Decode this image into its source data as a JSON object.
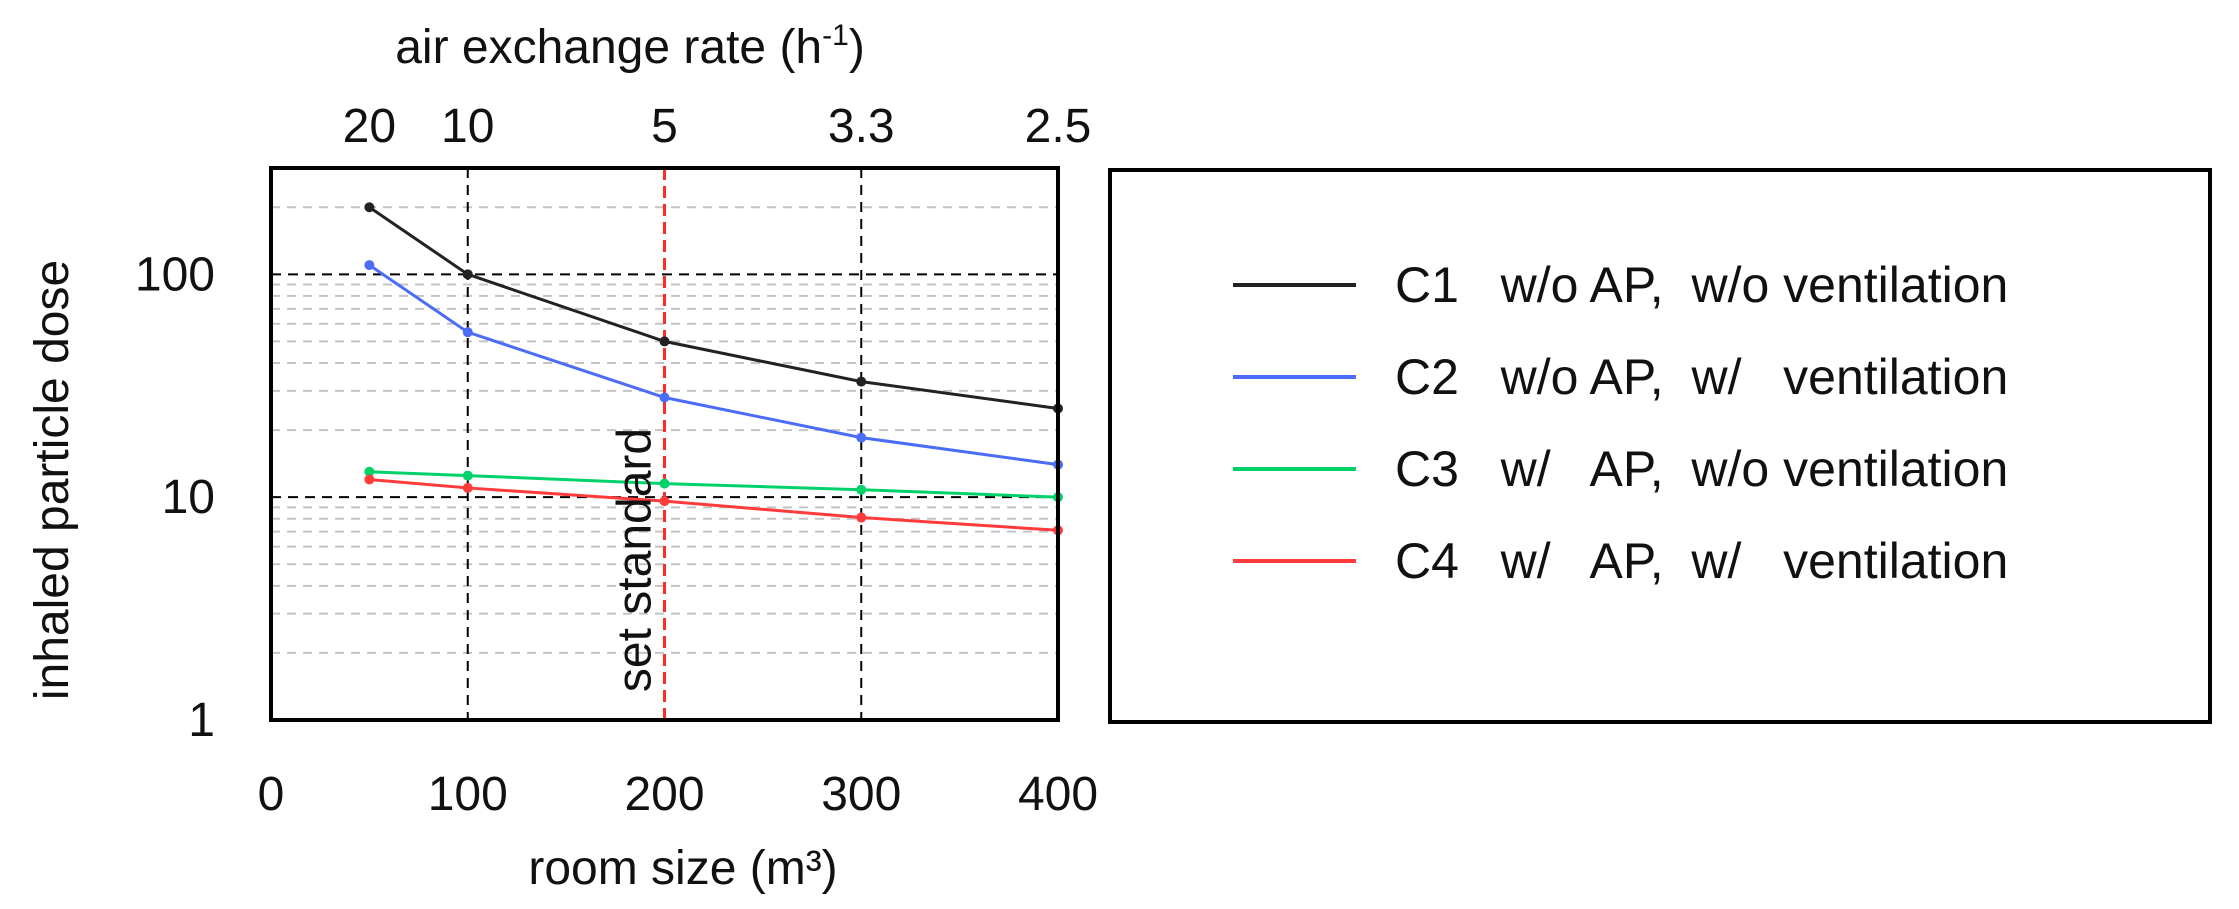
{
  "chart_data": {
    "type": "line",
    "xlabel": "room size (m³)",
    "ylabel": "inhaled particle dose",
    "top_axis_label": "air exchange rate (h",
    "top_axis_label_sup": "-1",
    "top_axis_label_end": ")",
    "y_scale": "log",
    "ylim": [
      1,
      300
    ],
    "xlim": [
      0,
      400
    ],
    "x_ticks": [
      0,
      100,
      200,
      300,
      400
    ],
    "x_tick_labels": [
      "0",
      "100",
      "200",
      "300",
      "400"
    ],
    "y_ticks": [
      1,
      10,
      100
    ],
    "y_tick_labels": [
      "1",
      "10",
      "100"
    ],
    "top_ticks": [
      50,
      100,
      200,
      300,
      400
    ],
    "top_tick_labels": [
      "20",
      "10",
      "5",
      "3.3",
      "2.5"
    ],
    "grid": "dashed",
    "annotation": {
      "text": "set standard",
      "x": 200,
      "color": "#ff2a2a"
    },
    "x": [
      50,
      100,
      200,
      300,
      400
    ],
    "series": [
      {
        "name": "C1",
        "legend_label": "C1   w/o AP,  w/o ventilation",
        "color": "#222222",
        "values": [
          200,
          100,
          50,
          33,
          25
        ]
      },
      {
        "name": "C2",
        "legend_label": "C2   w/o AP,  w/   ventilation",
        "color": "#4a6cf7",
        "values": [
          110,
          55,
          28,
          18.5,
          14
        ]
      },
      {
        "name": "C3",
        "legend_label": "C3   w/   AP,  w/o ventilation",
        "color": "#00d26a",
        "values": [
          13,
          12.5,
          11.5,
          10.8,
          10
        ]
      },
      {
        "name": "C4",
        "legend_label": "C4   w/   AP,  w/   ventilation",
        "color": "#ff3b3b",
        "values": [
          12,
          11,
          9.6,
          8.1,
          7.1
        ]
      }
    ],
    "legend_position": "right"
  }
}
